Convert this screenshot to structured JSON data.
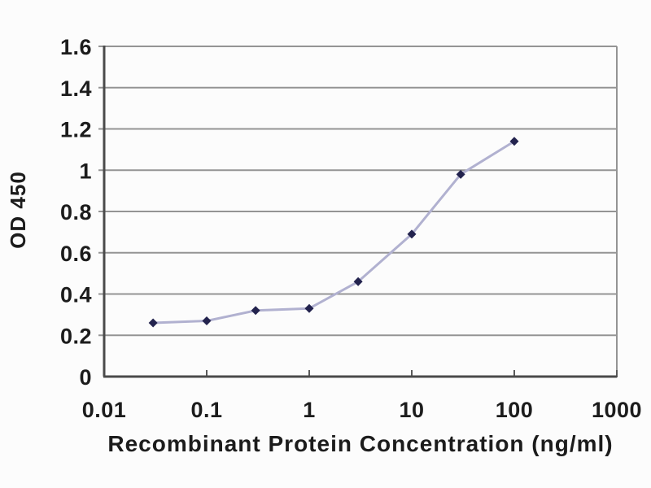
{
  "chart_data": {
    "type": "line",
    "xlabel": "Recombinant Protein Concentration (ng/ml)",
    "ylabel": "OD 450",
    "x_scale": "log",
    "xlim": [
      0.01,
      1000
    ],
    "ylim": [
      0,
      1.6
    ],
    "x_ticks": [
      0.01,
      0.1,
      1,
      10,
      100,
      1000
    ],
    "x_tick_labels": [
      "0.01",
      "0.1",
      "1",
      "10",
      "100",
      "1000"
    ],
    "y_ticks": [
      0,
      0.2,
      0.4,
      0.6,
      0.8,
      1,
      1.2,
      1.4,
      1.6
    ],
    "y_tick_labels": [
      "0",
      "0.2",
      "0.4",
      "0.6",
      "0.8",
      "1",
      "1.2",
      "1.4",
      "1.6"
    ],
    "grid": "horizontal",
    "legend": "none",
    "series": [
      {
        "name": "OD 450",
        "marker": "diamond",
        "x": [
          0.03,
          0.1,
          0.3,
          1,
          3,
          10,
          30,
          100
        ],
        "y": [
          0.26,
          0.27,
          0.32,
          0.33,
          0.46,
          0.69,
          0.98,
          1.14
        ]
      }
    ],
    "colors": {
      "line": "#b1b1d0",
      "marker": "#23234e",
      "grid": "#949494",
      "axis": "#4a4a4a",
      "tick": "#5a5a5a",
      "text": "#1c1c1c",
      "background": "#fcfcfc"
    }
  }
}
